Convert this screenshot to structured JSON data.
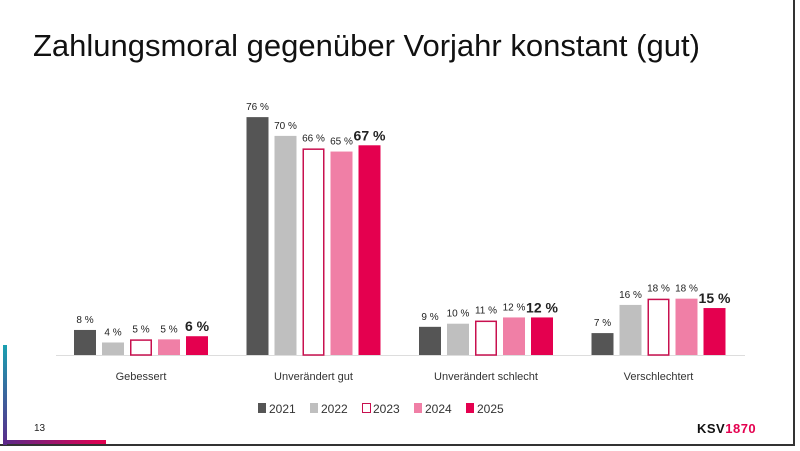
{
  "title": "Zahlungsmoral gegenüber Vorjahr konstant (gut)",
  "page_number": "13",
  "logo": {
    "text": "KSV1870",
    "part1": "KSV",
    "part2": "1870"
  },
  "chart_data": {
    "type": "bar",
    "categories": [
      "Gebessert",
      "Unverändert gut",
      "Unverändert schlecht",
      "Verschlechtert"
    ],
    "series": [
      {
        "name": "2021",
        "values": [
          8,
          76,
          9,
          7
        ],
        "color": "#555555",
        "style": "filled"
      },
      {
        "name": "2022",
        "values": [
          4,
          70,
          10,
          16
        ],
        "color": "#bfbfbf",
        "style": "filled"
      },
      {
        "name": "2023",
        "values": [
          5,
          66,
          11,
          18
        ],
        "color": "#c8104f",
        "style": "outline"
      },
      {
        "name": "2024",
        "values": [
          5,
          65,
          12,
          18
        ],
        "color": "#f07fa6",
        "style": "filled"
      },
      {
        "name": "2025",
        "values": [
          6,
          67,
          12,
          15
        ],
        "color": "#e4004f",
        "style": "filled",
        "labels_bold": true
      }
    ],
    "value_suffix": " %",
    "ylim": [
      0,
      80
    ],
    "grid": false,
    "legend_placement": "bottom"
  }
}
